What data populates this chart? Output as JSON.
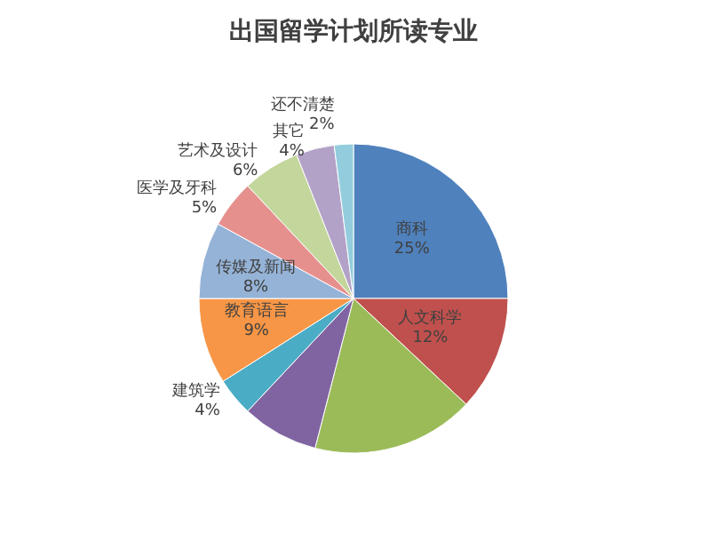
{
  "chart_data": {
    "type": "pie",
    "title": "出国留学计划所读专业",
    "categories": [
      "商科",
      "人文科学",
      null,
      null,
      "建筑学",
      "教育语言",
      "传媒及新闻",
      "医学及牙科",
      "艺术及设计",
      "其它",
      "还不清楚"
    ],
    "values": [
      25,
      12,
      17,
      8,
      4,
      9,
      8,
      5,
      6,
      4,
      2
    ],
    "value_labels": [
      "25%",
      "12%",
      null,
      null,
      "4%",
      "9%",
      "8%",
      "5%",
      "6%",
      "4%",
      "2%"
    ],
    "colors": [
      "#4f81bd",
      "#c0504d",
      "#9bbb59",
      "#8064a2",
      "#4bacc6",
      "#f79646",
      "#95b3d7",
      "#e6908e",
      "#c3d69b",
      "#b3a2c7",
      "#93cddd"
    ]
  }
}
